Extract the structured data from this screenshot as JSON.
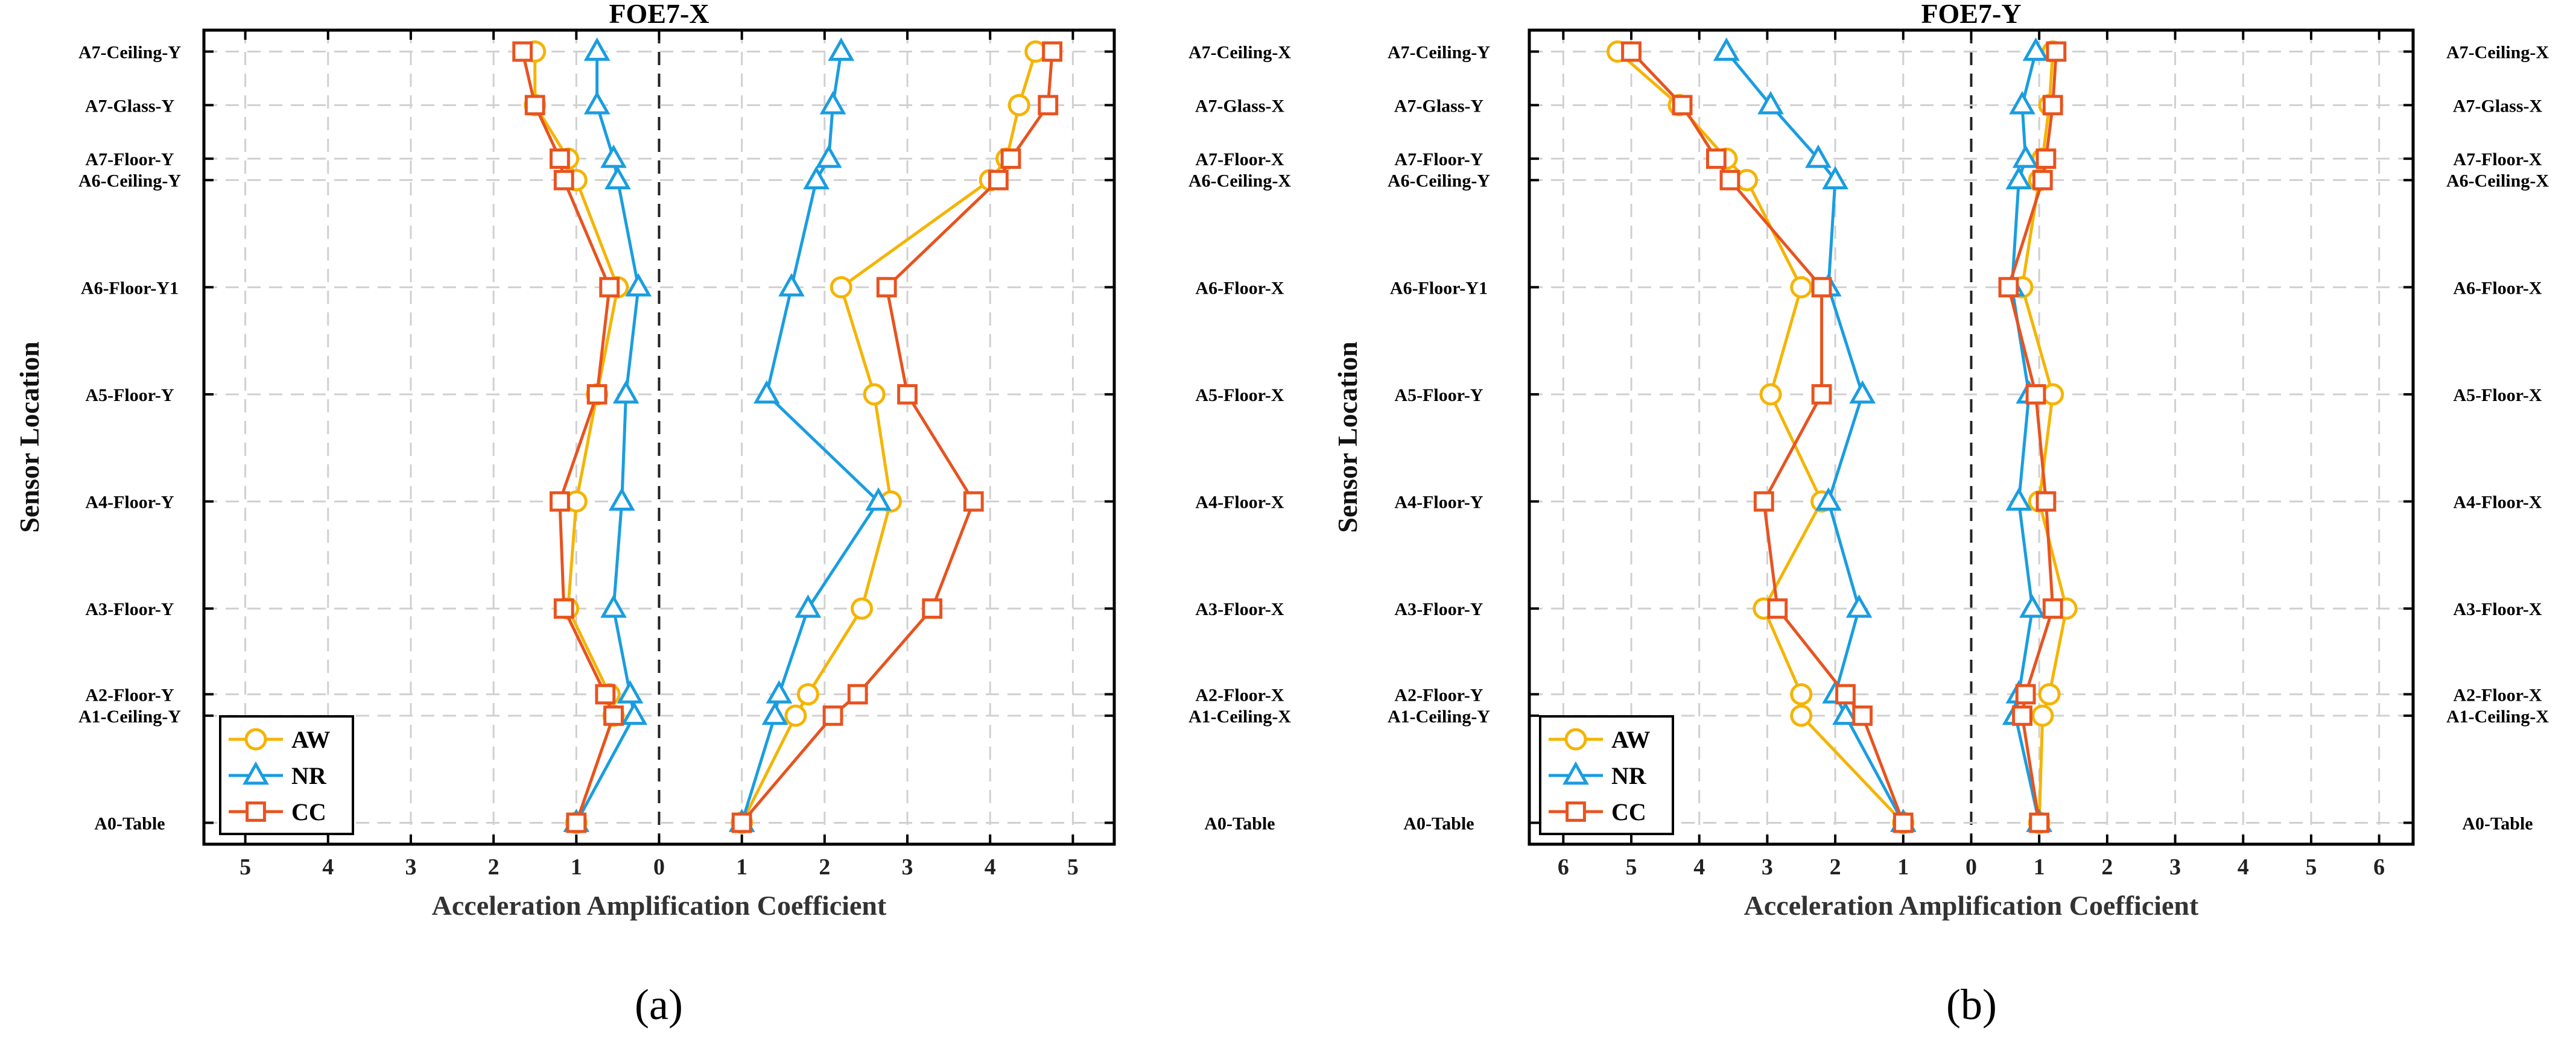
{
  "chart_data": [
    {
      "type": "line",
      "panel_label": "(a)",
      "title": "FOE7-X",
      "xlabel": "Acceleration Amplification Coefficient",
      "ylabel": "Sensor Location",
      "xlim": [
        -5.5,
        5.5
      ],
      "x_ticks": [
        {
          "value": -5,
          "label": "5"
        },
        {
          "value": -4,
          "label": "4"
        },
        {
          "value": -3,
          "label": "3"
        },
        {
          "value": -2,
          "label": "2"
        },
        {
          "value": -1,
          "label": "1"
        },
        {
          "value": 0,
          "label": "0"
        },
        {
          "value": 1,
          "label": "1"
        },
        {
          "value": 2,
          "label": "2"
        },
        {
          "value": 3,
          "label": "3"
        },
        {
          "value": 4,
          "label": "4"
        },
        {
          "value": 5,
          "label": "5"
        }
      ],
      "y_positions": [
        0,
        1,
        1.2,
        2,
        3,
        4,
        5,
        6,
        6.2,
        6.7,
        7.2
      ],
      "left_categories": [
        "A0-Table",
        "A1-Ceiling-Y",
        "A2-Floor-Y",
        "A3-Floor-Y",
        "A4-Floor-Y",
        "A5-Floor-Y",
        "A6-Floor-Y1",
        "A6-Ceiling-Y",
        "A7-Floor-Y",
        "A7-Glass-Y",
        "A7-Ceiling-Y"
      ],
      "right_categories": [
        "A0-Table",
        "A1-Ceiling-X",
        "A2-Floor-X",
        "A3-Floor-X",
        "A4-Floor-X",
        "A5-Floor-X",
        "A6-Floor-X",
        "A6-Ceiling-X",
        "A7-Floor-X",
        "A7-Glass-X",
        "A7-Ceiling-X"
      ],
      "legend": {
        "placement": "bottom-left",
        "entries": [
          "AW",
          "NR",
          "CC"
        ]
      },
      "grid": true,
      "series": [
        {
          "name": "AW",
          "color": "#F5B400",
          "marker": "circle",
          "side": "left",
          "values": [
            -1.0,
            -0.55,
            -0.6,
            -1.1,
            -1.0,
            -0.75,
            -0.5,
            -1.0,
            -1.1,
            -1.5,
            -1.5
          ]
        },
        {
          "name": "AW",
          "color": "#F5B400",
          "marker": "circle",
          "side": "right",
          "values": [
            1.0,
            1.65,
            1.8,
            2.45,
            2.8,
            2.6,
            2.2,
            4.0,
            4.2,
            4.35,
            4.55
          ]
        },
        {
          "name": "NR",
          "color": "#1A9DE0",
          "marker": "triangle",
          "side": "left",
          "values": [
            -1.0,
            -0.3,
            -0.35,
            -0.55,
            -0.45,
            -0.4,
            -0.25,
            -0.5,
            -0.55,
            -0.75,
            -0.75
          ]
        },
        {
          "name": "NR",
          "color": "#1A9DE0",
          "marker": "triangle",
          "side": "right",
          "values": [
            1.0,
            1.4,
            1.45,
            1.8,
            2.65,
            1.3,
            1.6,
            1.9,
            2.05,
            2.1,
            2.2
          ]
        },
        {
          "name": "CC",
          "color": "#E8531F",
          "marker": "square",
          "side": "left",
          "values": [
            -1.0,
            -0.55,
            -0.65,
            -1.15,
            -1.2,
            -0.75,
            -0.6,
            -1.15,
            -1.2,
            -1.5,
            -1.65
          ]
        },
        {
          "name": "CC",
          "color": "#E8531F",
          "marker": "square",
          "side": "right",
          "values": [
            1.0,
            2.1,
            2.4,
            3.3,
            3.8,
            3.0,
            2.75,
            4.1,
            4.25,
            4.7,
            4.75
          ]
        }
      ]
    },
    {
      "type": "line",
      "panel_label": "(b)",
      "title": "FOE7-Y",
      "xlabel": "Acceleration Amplification Coefficient",
      "ylabel": "Sensor Location",
      "xlim": [
        -6.5,
        6.5
      ],
      "x_ticks": [
        {
          "value": -6,
          "label": "6"
        },
        {
          "value": -5,
          "label": "5"
        },
        {
          "value": -4,
          "label": "4"
        },
        {
          "value": -3,
          "label": "3"
        },
        {
          "value": -2,
          "label": "2"
        },
        {
          "value": -1,
          "label": "1"
        },
        {
          "value": 0,
          "label": "0"
        },
        {
          "value": 1,
          "label": "1"
        },
        {
          "value": 2,
          "label": "2"
        },
        {
          "value": 3,
          "label": "3"
        },
        {
          "value": 4,
          "label": "4"
        },
        {
          "value": 5,
          "label": "5"
        },
        {
          "value": 6,
          "label": "6"
        }
      ],
      "y_positions": [
        0,
        1,
        1.2,
        2,
        3,
        4,
        5,
        6,
        6.2,
        6.7,
        7.2
      ],
      "left_categories": [
        "A0-Table",
        "A1-Ceiling-Y",
        "A2-Floor-Y",
        "A3-Floor-Y",
        "A4-Floor-Y",
        "A5-Floor-Y",
        "A6-Floor-Y1",
        "A6-Ceiling-Y",
        "A7-Floor-Y",
        "A7-Glass-Y",
        "A7-Ceiling-Y"
      ],
      "right_categories": [
        "A0-Table",
        "A1-Ceiling-X",
        "A2-Floor-X",
        "A3-Floor-X",
        "A4-Floor-X",
        "A5-Floor-X",
        "A6-Floor-X",
        "A6-Ceiling-X",
        "A7-Floor-X",
        "A7-Glass-X",
        "A7-Ceiling-X"
      ],
      "legend": {
        "placement": "bottom-left",
        "entries": [
          "AW",
          "NR",
          "CC"
        ]
      },
      "grid": true,
      "series": [
        {
          "name": "AW",
          "color": "#F5B400",
          "marker": "circle",
          "side": "left",
          "values": [
            -1.0,
            -2.5,
            -2.5,
            -3.05,
            -2.2,
            -2.95,
            -2.5,
            -3.3,
            -3.6,
            -4.3,
            -5.2
          ]
        },
        {
          "name": "AW",
          "color": "#F5B400",
          "marker": "circle",
          "side": "right",
          "values": [
            1.0,
            1.05,
            1.15,
            1.4,
            1.0,
            1.2,
            0.75,
            1.0,
            1.05,
            1.15,
            1.2
          ]
        },
        {
          "name": "NR",
          "color": "#1A9DE0",
          "marker": "triangle",
          "side": "left",
          "values": [
            -1.0,
            -1.85,
            -2.0,
            -1.65,
            -2.1,
            -1.6,
            -2.1,
            -2.0,
            -2.25,
            -2.95,
            -3.6
          ]
        },
        {
          "name": "NR",
          "color": "#1A9DE0",
          "marker": "triangle",
          "side": "right",
          "values": [
            1.0,
            0.65,
            0.7,
            0.9,
            0.7,
            0.85,
            0.6,
            0.7,
            0.8,
            0.75,
            0.95
          ]
        },
        {
          "name": "CC",
          "color": "#E8531F",
          "marker": "square",
          "side": "left",
          "values": [
            -1.0,
            -1.6,
            -1.85,
            -2.85,
            -3.05,
            -2.2,
            -2.2,
            -3.55,
            -3.75,
            -4.25,
            -5.0
          ]
        },
        {
          "name": "CC",
          "color": "#E8531F",
          "marker": "square",
          "side": "right",
          "values": [
            1.0,
            0.75,
            0.8,
            1.2,
            1.1,
            0.95,
            0.55,
            1.05,
            1.1,
            1.2,
            1.25
          ]
        }
      ]
    }
  ]
}
